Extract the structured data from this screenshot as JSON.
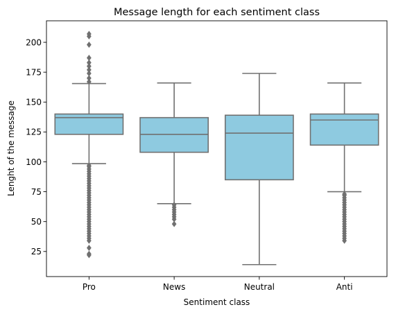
{
  "chart_data": {
    "type": "box",
    "title": "Message length for each sentiment class",
    "xlabel": "Sentiment class",
    "ylabel": "Lenght of the message",
    "categories": [
      "Pro",
      "News",
      "Neutral",
      "Anti"
    ],
    "ylim": [
      4,
      218
    ],
    "yticks": [
      25,
      50,
      75,
      100,
      125,
      150,
      175,
      200
    ],
    "grid": false,
    "box_color": "#8ecae0",
    "line_color": "#707070",
    "boxes": [
      {
        "category": "Pro",
        "whisker_low": 98.5,
        "q1": 123,
        "median": 137,
        "q3": 140,
        "whisker_high": 165.5,
        "outliers": [
          22,
          23,
          28,
          34,
          36,
          38,
          40,
          42,
          44,
          46,
          48,
          50,
          52,
          54,
          56,
          58,
          60,
          62,
          64,
          66,
          68,
          70,
          72,
          74,
          76,
          78,
          80,
          82,
          84,
          86,
          88,
          90,
          92,
          94,
          96,
          97,
          167,
          170,
          174,
          177,
          180,
          183,
          187,
          198,
          205,
          207
        ]
      },
      {
        "category": "News",
        "whisker_low": 65,
        "q1": 108,
        "median": 123,
        "q3": 137,
        "whisker_high": 166,
        "outliers": [
          48,
          52,
          54,
          56,
          58,
          60,
          62,
          64
        ]
      },
      {
        "category": "Neutral",
        "whisker_low": 14,
        "q1": 85,
        "median": 124,
        "q3": 139,
        "whisker_high": 174,
        "outliers": []
      },
      {
        "category": "Anti",
        "whisker_low": 75,
        "q1": 114,
        "median": 135,
        "q3": 140,
        "whisker_high": 166,
        "outliers": [
          34,
          36,
          38,
          40,
          42,
          44,
          46,
          48,
          50,
          52,
          54,
          56,
          58,
          60,
          62,
          64,
          66,
          68,
          70,
          72,
          73
        ]
      }
    ]
  }
}
